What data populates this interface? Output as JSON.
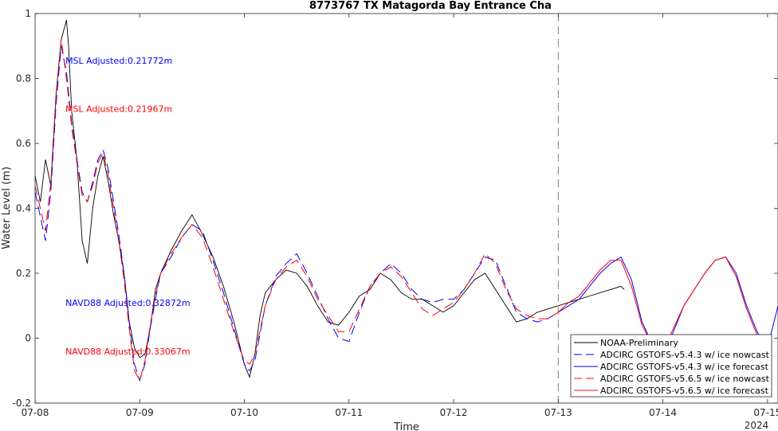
{
  "chart_data": {
    "type": "line",
    "title": "8773767 TX Matagorda Bay Entrance Cha",
    "xlabel": "Time",
    "ylabel": "Water Level (m)",
    "x_unit": "days since 07-08 00:00 (2024)",
    "xlim": [
      0,
      7.1
    ],
    "ylim": [
      -0.2,
      1.0
    ],
    "x_ticks": [
      {
        "x": 0,
        "label": "07-08"
      },
      {
        "x": 1,
        "label": "07-09"
      },
      {
        "x": 2,
        "label": "07-10"
      },
      {
        "x": 3,
        "label": "07-11"
      },
      {
        "x": 4,
        "label": "07-12"
      },
      {
        "x": 5,
        "label": "07-13"
      },
      {
        "x": 6,
        "label": "07-14"
      },
      {
        "x": 7,
        "label": "07-15"
      }
    ],
    "x_year_label": "2024",
    "y_ticks": [
      -0.2,
      0,
      0.2,
      0.4,
      0.6,
      0.8,
      1.0
    ],
    "y_tick_labels": [
      "-0.2",
      "0",
      "0.2",
      "0.4",
      "0.6",
      "0.8",
      "1"
    ],
    "nowcast_forecast_boundary_x": 5,
    "grid": false,
    "legend_position": "bottom-right",
    "annotations": [
      {
        "text": "MSL Adjusted:0.21772m",
        "color": "#0000ff",
        "x": 0.29,
        "y": 0.845
      },
      {
        "text": "MSL Adjusted:0.21967m",
        "color": "#ff0000",
        "x": 0.29,
        "y": 0.697
      },
      {
        "text": "NAVD88 Adjusted:0.32872m",
        "color": "#0000ff",
        "x": 0.29,
        "y": 0.1
      },
      {
        "text": "NAVD88 Adjusted:0.33067m",
        "color": "#ff0000",
        "x": 0.29,
        "y": -0.05
      }
    ],
    "series": [
      {
        "name": "NOAA-Preliminary",
        "color": "#000000",
        "dash": "solid",
        "x": [
          0,
          0.05,
          0.1,
          0.15,
          0.2,
          0.25,
          0.3,
          0.32,
          0.35,
          0.4,
          0.45,
          0.5,
          0.55,
          0.6,
          0.65,
          0.7,
          0.75,
          0.8,
          0.85,
          0.9,
          0.95,
          1.0,
          1.05,
          1.1,
          1.15,
          1.2,
          1.3,
          1.4,
          1.5,
          1.6,
          1.7,
          1.8,
          1.9,
          2.0,
          2.05,
          2.1,
          2.15,
          2.2,
          2.3,
          2.4,
          2.5,
          2.6,
          2.7,
          2.8,
          2.9,
          3.0,
          3.1,
          3.2,
          3.3,
          3.4,
          3.5,
          3.6,
          3.7,
          3.8,
          3.9,
          4.0,
          4.1,
          4.2,
          4.3,
          4.4,
          4.5,
          4.6,
          4.7,
          4.8,
          4.9,
          5.0,
          5.1,
          5.2,
          5.3,
          5.4,
          5.5,
          5.6,
          5.63
        ],
        "y": [
          0.5,
          0.42,
          0.55,
          0.47,
          0.75,
          0.92,
          0.98,
          0.9,
          0.7,
          0.55,
          0.3,
          0.23,
          0.4,
          0.5,
          0.56,
          0.48,
          0.38,
          0.3,
          0.2,
          0.05,
          -0.03,
          -0.06,
          -0.05,
          0.03,
          0.15,
          0.2,
          0.27,
          0.33,
          0.38,
          0.32,
          0.25,
          0.16,
          0.05,
          -0.08,
          -0.12,
          -0.05,
          0.07,
          0.14,
          0.18,
          0.21,
          0.2,
          0.16,
          0.1,
          0.05,
          0.04,
          0.08,
          0.13,
          0.15,
          0.2,
          0.18,
          0.14,
          0.12,
          0.12,
          0.1,
          0.08,
          0.1,
          0.14,
          0.18,
          0.2,
          0.15,
          0.1,
          0.05,
          0.06,
          0.08,
          0.09,
          0.1,
          0.11,
          0.12,
          0.13,
          0.14,
          0.15,
          0.16,
          0.15
        ]
      },
      {
        "name": "ADCIRC GSTOFS-v5.4.3 w/ ice nowcast",
        "color": "#0000ff",
        "dash": "dash",
        "x": [
          0,
          0.1,
          0.15,
          0.2,
          0.25,
          0.3,
          0.35,
          0.4,
          0.45,
          0.5,
          0.55,
          0.6,
          0.65,
          0.7,
          0.75,
          0.8,
          0.85,
          0.9,
          0.95,
          1.0,
          1.05,
          1.1,
          1.15,
          1.2,
          1.3,
          1.4,
          1.5,
          1.6,
          1.7,
          1.8,
          1.9,
          2.0,
          2.05,
          2.1,
          2.2,
          2.3,
          2.4,
          2.5,
          2.6,
          2.7,
          2.8,
          2.9,
          3.0,
          3.1,
          3.2,
          3.3,
          3.4,
          3.5,
          3.6,
          3.7,
          3.8,
          3.9,
          4.0,
          4.1,
          4.2,
          4.3,
          4.4,
          4.5,
          4.6,
          4.7,
          4.8,
          4.9,
          5.0
        ],
        "y": [
          0.45,
          0.3,
          0.45,
          0.72,
          0.9,
          0.82,
          0.66,
          0.55,
          0.45,
          0.42,
          0.48,
          0.55,
          0.58,
          0.52,
          0.42,
          0.32,
          0.2,
          0.05,
          -0.08,
          -0.13,
          -0.08,
          0.03,
          0.12,
          0.2,
          0.25,
          0.31,
          0.35,
          0.33,
          0.24,
          0.14,
          0.03,
          -0.08,
          -0.1,
          -0.07,
          0.1,
          0.19,
          0.23,
          0.26,
          0.2,
          0.13,
          0.06,
          0.0,
          -0.01,
          0.08,
          0.16,
          0.2,
          0.23,
          0.2,
          0.15,
          0.12,
          0.11,
          0.12,
          0.12,
          0.15,
          0.2,
          0.25,
          0.24,
          0.16,
          0.08,
          0.06,
          0.05,
          0.06,
          0.08
        ]
      },
      {
        "name": "ADCIRC GSTOFS-v5.4.3 w/ ice forecast",
        "color": "#0000ff",
        "dash": "solid",
        "x": [
          5.0,
          5.1,
          5.2,
          5.3,
          5.4,
          5.5,
          5.6,
          5.7,
          5.8,
          5.9,
          6.0,
          6.1,
          6.2,
          6.3,
          6.4,
          6.5,
          6.6,
          6.7,
          6.8,
          6.9,
          7.0,
          7.1
        ],
        "y": [
          0.08,
          0.1,
          0.12,
          0.16,
          0.2,
          0.23,
          0.25,
          0.18,
          0.05,
          -0.02,
          -0.05,
          0.02,
          0.1,
          0.15,
          0.2,
          0.24,
          0.25,
          0.2,
          0.1,
          0.02,
          -0.03,
          0.1
        ]
      },
      {
        "name": "ADCIRC GSTOFS-v5.6.5 w/ ice nowcast",
        "color": "#ff0000",
        "dash": "dash",
        "x": [
          0,
          0.1,
          0.15,
          0.2,
          0.25,
          0.3,
          0.35,
          0.4,
          0.45,
          0.5,
          0.55,
          0.6,
          0.65,
          0.7,
          0.75,
          0.8,
          0.85,
          0.9,
          0.95,
          1.0,
          1.05,
          1.1,
          1.15,
          1.2,
          1.3,
          1.4,
          1.5,
          1.6,
          1.7,
          1.8,
          1.9,
          2.0,
          2.05,
          2.1,
          2.2,
          2.3,
          2.4,
          2.5,
          2.6,
          2.7,
          2.8,
          2.9,
          3.0,
          3.1,
          3.2,
          3.3,
          3.4,
          3.5,
          3.6,
          3.7,
          3.8,
          3.9,
          4.0,
          4.1,
          4.2,
          4.3,
          4.4,
          4.5,
          4.6,
          4.7,
          4.8,
          4.9,
          5.0
        ],
        "y": [
          0.47,
          0.33,
          0.48,
          0.75,
          0.92,
          0.8,
          0.65,
          0.54,
          0.44,
          0.42,
          0.47,
          0.54,
          0.57,
          0.5,
          0.4,
          0.3,
          0.18,
          0.03,
          -0.1,
          -0.13,
          -0.07,
          0.04,
          0.13,
          0.2,
          0.26,
          0.31,
          0.35,
          0.31,
          0.22,
          0.12,
          0.02,
          -0.07,
          -0.08,
          -0.05,
          0.1,
          0.18,
          0.22,
          0.24,
          0.19,
          0.12,
          0.07,
          0.02,
          0.02,
          0.09,
          0.16,
          0.2,
          0.22,
          0.19,
          0.14,
          0.09,
          0.07,
          0.09,
          0.11,
          0.15,
          0.2,
          0.26,
          0.23,
          0.15,
          0.09,
          0.07,
          0.06,
          0.06,
          0.08
        ]
      },
      {
        "name": "ADCIRC GSTOFS-v5.6.5 w/ ice forecast",
        "color": "#ff0000",
        "dash": "solid",
        "x": [
          5.0,
          5.1,
          5.2,
          5.3,
          5.4,
          5.5,
          5.6,
          5.7,
          5.8,
          5.9,
          6.0,
          6.1,
          6.2,
          6.3,
          6.4,
          6.5,
          6.6,
          6.7,
          6.8,
          6.9,
          7.0
        ],
        "y": [
          0.08,
          0.11,
          0.13,
          0.17,
          0.21,
          0.24,
          0.24,
          0.16,
          0.04,
          -0.02,
          -0.04,
          0.03,
          0.1,
          0.15,
          0.2,
          0.24,
          0.25,
          0.19,
          0.09,
          0.01,
          -0.03
        ]
      }
    ]
  }
}
